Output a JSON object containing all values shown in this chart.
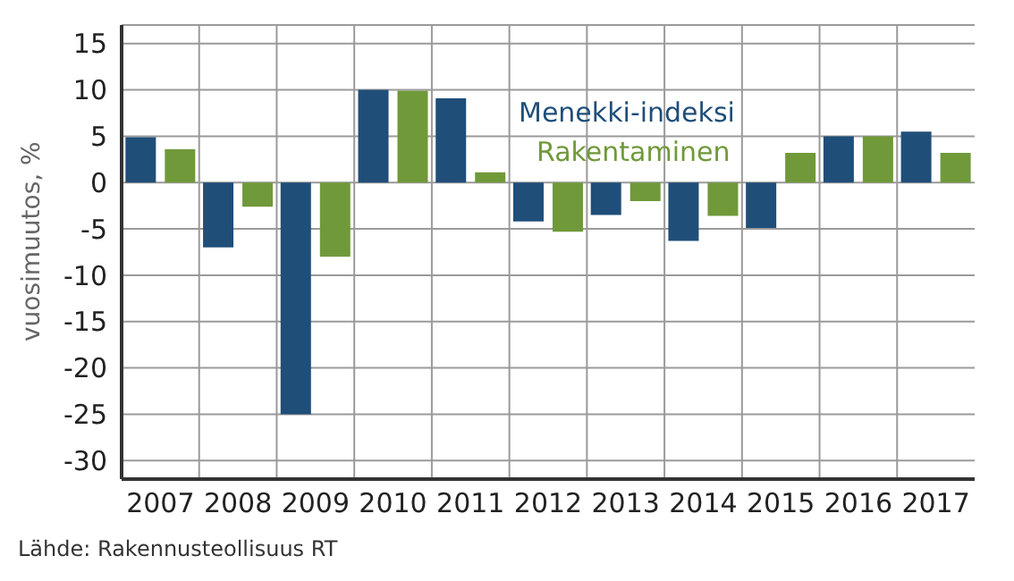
{
  "chart_data": {
    "type": "bar",
    "ylabel": "vuosimuutos, %",
    "categories": [
      "2007",
      "2008",
      "2009",
      "2010",
      "2011",
      "2012",
      "2013",
      "2014",
      "2015",
      "2016",
      "2017"
    ],
    "series": [
      {
        "name": "Menekki-indeksi",
        "color": "#1f4e79",
        "values": [
          4.9,
          -7.0,
          -25.0,
          10.0,
          9.1,
          -4.2,
          -3.5,
          -6.3,
          -4.9,
          5.0,
          5.5
        ]
      },
      {
        "name": "Rakentaminen",
        "color": "#70993a",
        "values": [
          3.6,
          -2.6,
          -8.0,
          9.9,
          1.1,
          -5.3,
          -2.0,
          -3.6,
          3.2,
          5.0,
          3.2
        ]
      }
    ],
    "ylim": [
      -32,
      17
    ],
    "yticks": [
      -30,
      -25,
      -20,
      -15,
      -10,
      -5,
      0,
      5,
      10,
      15
    ],
    "grid": true,
    "legend": "top right",
    "annotations": [
      "Lähde: Rakennusteollisuus RT"
    ]
  }
}
